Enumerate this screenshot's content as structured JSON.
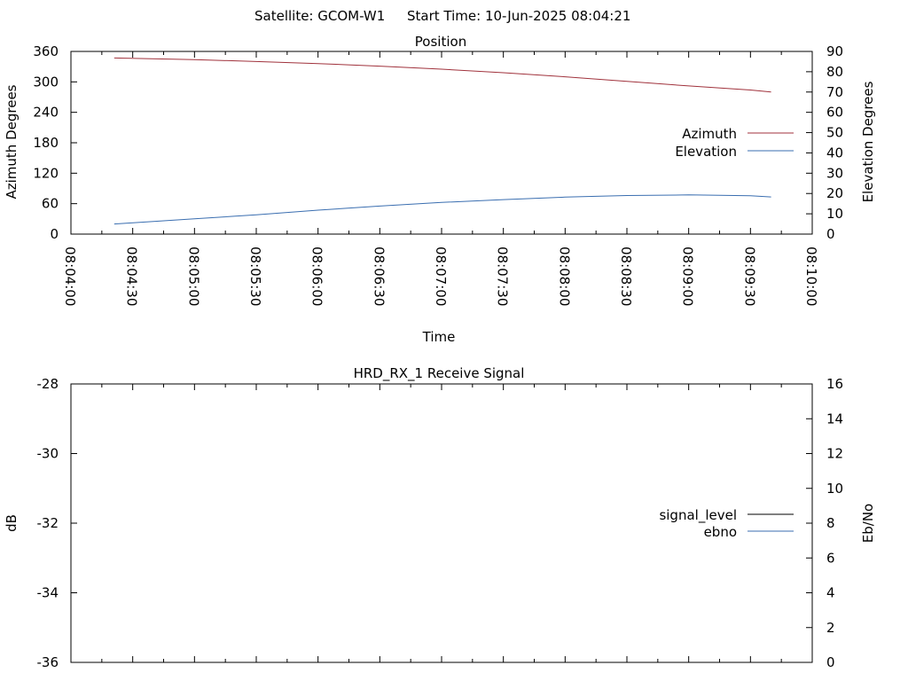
{
  "header": {
    "satellite": "Satellite: GCOM-W1",
    "start_time": "Start Time: 10-Jun-2025 08:04:21"
  },
  "colors": {
    "azimuth": "#a0323c",
    "elevation": "#3a6eb0",
    "signal_level": "#000000",
    "ebno": "#3a6eb0",
    "green_line": "#10a810",
    "frame": "#000000"
  },
  "chart_data": [
    {
      "type": "line",
      "title": "Position",
      "xlabel": "Time",
      "ylabel": "Azimuth Degrees",
      "y2label": "Elevation Degrees",
      "x_ticks": [
        "08:04:00",
        "08:04:30",
        "08:05:00",
        "08:05:30",
        "08:06:00",
        "08:06:30",
        "08:07:00",
        "08:07:30",
        "08:08:00",
        "08:08:30",
        "08:09:00",
        "08:09:30",
        "08:10:00"
      ],
      "xlim": [
        "08:04:00",
        "08:10:00"
      ],
      "ylim": [
        0,
        360
      ],
      "y_ticks": [
        "0",
        "60",
        "120",
        "180",
        "240",
        "300",
        "360"
      ],
      "y2lim": [
        0,
        90
      ],
      "y2_ticks": [
        "0",
        "10",
        "20",
        "30",
        "40",
        "50",
        "60",
        "70",
        "80",
        "90"
      ],
      "legend_position": "right",
      "series": [
        {
          "name": "Azimuth",
          "axis": "left",
          "x": [
            "08:04:21",
            "08:05:00",
            "08:05:30",
            "08:06:00",
            "08:06:30",
            "08:07:00",
            "08:07:30",
            "08:08:00",
            "08:08:30",
            "08:09:00",
            "08:09:30",
            "08:09:40"
          ],
          "y": [
            347,
            344,
            340,
            336,
            331,
            325,
            318,
            310,
            301,
            292,
            284,
            280
          ]
        },
        {
          "name": "Elevation",
          "axis": "right",
          "x": [
            "08:04:21",
            "08:05:00",
            "08:05:30",
            "08:06:00",
            "08:06:30",
            "08:07:00",
            "08:07:30",
            "08:08:00",
            "08:08:30",
            "08:09:00",
            "08:09:30",
            "08:09:40"
          ],
          "y": [
            5,
            7.5,
            9.5,
            11.8,
            13.8,
            15.6,
            17,
            18.2,
            19,
            19.3,
            18.9,
            18.3
          ]
        }
      ]
    },
    {
      "type": "line",
      "title": "HRD_RX_1 Receive Signal",
      "ylabel": "dB",
      "y2label": "Eb/No",
      "xlim": [
        "08:04:00",
        "08:10:00"
      ],
      "ylim": [
        -36,
        -28
      ],
      "y_ticks": [
        "-36",
        "-34",
        "-32",
        "-30",
        "-28"
      ],
      "y2lim": [
        0,
        16
      ],
      "y2_ticks": [
        "0",
        "2",
        "4",
        "6",
        "8",
        "10",
        "12",
        "14",
        "16"
      ],
      "legend_position": "right",
      "series": [
        {
          "name": "signal_level",
          "axis": "left",
          "x": [],
          "y": []
        },
        {
          "name": "ebno",
          "axis": "right",
          "x": [],
          "y": []
        }
      ]
    }
  ]
}
